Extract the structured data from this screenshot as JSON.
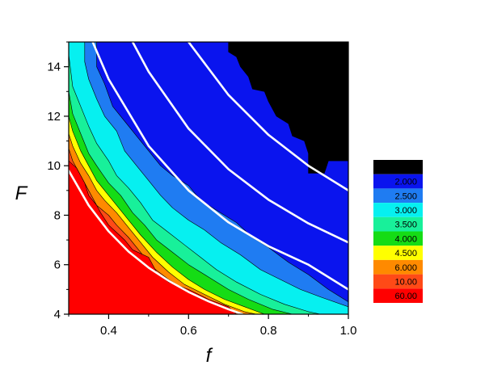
{
  "chart_data": {
    "type": "heatmap",
    "title": "",
    "xlabel": "f",
    "ylabel": "F",
    "xlim": [
      0.3,
      1.0
    ],
    "ylim": [
      4,
      15
    ],
    "x_ticks": [
      {
        "value": 0.4,
        "label": "0.4"
      },
      {
        "value": 0.6,
        "label": "0.6"
      },
      {
        "value": 0.8,
        "label": "0.8"
      },
      {
        "value": 1.0,
        "label": "1.0"
      }
    ],
    "x_minor_ticks": [
      0.3,
      0.5,
      0.7,
      0.9
    ],
    "y_ticks": [
      {
        "value": 4,
        "label": "4"
      },
      {
        "value": 6,
        "label": "6"
      },
      {
        "value": 8,
        "label": "8"
      },
      {
        "value": 10,
        "label": "10"
      },
      {
        "value": 12,
        "label": "12"
      },
      {
        "value": 14,
        "label": "14"
      }
    ],
    "y_minor_ticks": [
      5,
      7,
      9,
      11,
      13,
      15
    ],
    "legend_position": "right",
    "levels": [
      {
        "label": "1.000",
        "color": "#000000"
      },
      {
        "label": "2.000",
        "color": "#0a14ee"
      },
      {
        "label": "2.500",
        "color": "#1f7cf2"
      },
      {
        "label": "3.000",
        "color": "#06f0f0"
      },
      {
        "label": "3.500",
        "color": "#18f09a"
      },
      {
        "label": "4.000",
        "color": "#15dc15"
      },
      {
        "label": "4.500",
        "color": "#ffff00"
      },
      {
        "label": "6.000",
        "color": "#ff8a00"
      },
      {
        "label": "10.00",
        "color": "#ff4a17"
      },
      {
        "label": "60.00",
        "color": "#ff0000"
      }
    ],
    "regions": [
      {
        "level": "2.000",
        "boundary": [
          [
            0.3,
            15.0
          ],
          [
            0.3,
            4.0
          ],
          [
            1.0,
            4.0
          ],
          [
            1.0,
            15.0
          ]
        ]
      },
      {
        "level": "1.000",
        "boundary": [
          [
            0.7,
            15.0
          ],
          [
            0.7,
            14.6
          ],
          [
            0.72,
            14.4
          ],
          [
            0.73,
            14.0
          ],
          [
            0.75,
            13.6
          ],
          [
            0.76,
            13.1
          ],
          [
            0.79,
            13.0
          ],
          [
            0.8,
            12.6
          ],
          [
            0.82,
            12.0
          ],
          [
            0.85,
            11.7
          ],
          [
            0.86,
            11.2
          ],
          [
            0.89,
            11.0
          ],
          [
            0.9,
            10.5
          ],
          [
            0.9,
            9.7
          ],
          [
            0.94,
            9.7
          ],
          [
            0.95,
            10.2
          ],
          [
            1.0,
            10.2
          ],
          [
            1.0,
            15.0
          ]
        ]
      },
      {
        "level": "2.500",
        "boundary": [
          [
            0.3,
            15.0
          ],
          [
            0.37,
            15.0
          ],
          [
            0.37,
            14.0
          ],
          [
            0.39,
            13.3
          ],
          [
            0.41,
            12.4
          ],
          [
            0.44,
            11.8
          ],
          [
            0.47,
            11.2
          ],
          [
            0.5,
            10.6
          ],
          [
            0.53,
            10.0
          ],
          [
            0.56,
            9.6
          ],
          [
            0.6,
            9.2
          ],
          [
            0.62,
            8.8
          ],
          [
            0.64,
            8.5
          ],
          [
            0.68,
            8.1
          ],
          [
            0.72,
            7.7
          ],
          [
            0.76,
            7.1
          ],
          [
            0.8,
            6.7
          ],
          [
            0.85,
            6.1
          ],
          [
            0.9,
            5.6
          ],
          [
            0.95,
            5.0
          ],
          [
            1.0,
            4.5
          ],
          [
            1.0,
            4.0
          ],
          [
            0.3,
            4.0
          ]
        ]
      },
      {
        "level": "3.000",
        "boundary": [
          [
            0.3,
            15.0
          ],
          [
            0.34,
            15.0
          ],
          [
            0.34,
            14.2
          ],
          [
            0.35,
            13.5
          ],
          [
            0.37,
            12.7
          ],
          [
            0.39,
            12.0
          ],
          [
            0.42,
            11.4
          ],
          [
            0.44,
            10.6
          ],
          [
            0.47,
            10.0
          ],
          [
            0.5,
            9.4
          ],
          [
            0.53,
            8.8
          ],
          [
            0.56,
            8.3
          ],
          [
            0.6,
            7.8
          ],
          [
            0.64,
            7.4
          ],
          [
            0.68,
            6.9
          ],
          [
            0.73,
            6.4
          ],
          [
            0.78,
            5.8
          ],
          [
            0.83,
            5.4
          ],
          [
            0.88,
            5.0
          ],
          [
            0.93,
            4.7
          ],
          [
            1.0,
            4.3
          ],
          [
            1.0,
            4.0
          ],
          [
            0.3,
            4.0
          ]
        ]
      },
      {
        "level": "3.500",
        "boundary": [
          [
            0.3,
            14.5
          ],
          [
            0.31,
            13.2
          ],
          [
            0.33,
            12.4
          ],
          [
            0.35,
            11.6
          ],
          [
            0.37,
            10.9
          ],
          [
            0.4,
            10.2
          ],
          [
            0.42,
            9.6
          ],
          [
            0.45,
            9.1
          ],
          [
            0.48,
            8.5
          ],
          [
            0.51,
            7.8
          ],
          [
            0.55,
            7.3
          ],
          [
            0.59,
            6.8
          ],
          [
            0.63,
            6.3
          ],
          [
            0.67,
            5.8
          ],
          [
            0.72,
            5.3
          ],
          [
            0.78,
            4.8
          ],
          [
            0.84,
            4.4
          ],
          [
            0.9,
            4.1
          ],
          [
            0.93,
            4.0
          ],
          [
            0.3,
            4.0
          ]
        ]
      },
      {
        "level": "4.000",
        "boundary": [
          [
            0.3,
            13.0
          ],
          [
            0.31,
            12.1
          ],
          [
            0.33,
            11.3
          ],
          [
            0.35,
            10.5
          ],
          [
            0.37,
            10.0
          ],
          [
            0.4,
            9.3
          ],
          [
            0.43,
            8.8
          ],
          [
            0.46,
            8.1
          ],
          [
            0.49,
            7.6
          ],
          [
            0.52,
            7.0
          ],
          [
            0.56,
            6.5
          ],
          [
            0.6,
            6.0
          ],
          [
            0.65,
            5.5
          ],
          [
            0.7,
            5.0
          ],
          [
            0.75,
            4.6
          ],
          [
            0.81,
            4.2
          ],
          [
            0.86,
            4.0
          ],
          [
            0.3,
            4.0
          ]
        ]
      },
      {
        "level": "4.500",
        "boundary": [
          [
            0.3,
            12.0
          ],
          [
            0.31,
            11.4
          ],
          [
            0.33,
            10.6
          ],
          [
            0.35,
            10.0
          ],
          [
            0.37,
            9.4
          ],
          [
            0.4,
            8.8
          ],
          [
            0.42,
            8.4
          ],
          [
            0.45,
            7.8
          ],
          [
            0.48,
            7.2
          ],
          [
            0.52,
            6.5
          ],
          [
            0.56,
            5.9
          ],
          [
            0.6,
            5.4
          ],
          [
            0.64,
            5.0
          ],
          [
            0.69,
            4.6
          ],
          [
            0.74,
            4.3
          ],
          [
            0.79,
            4.0
          ],
          [
            0.3,
            4.0
          ]
        ]
      },
      {
        "level": "6.000",
        "boundary": [
          [
            0.3,
            11.3
          ],
          [
            0.31,
            10.8
          ],
          [
            0.33,
            10.1
          ],
          [
            0.35,
            9.6
          ],
          [
            0.37,
            9.0
          ],
          [
            0.39,
            8.6
          ],
          [
            0.42,
            8.1
          ],
          [
            0.45,
            7.5
          ],
          [
            0.48,
            6.9
          ],
          [
            0.51,
            6.3
          ],
          [
            0.55,
            5.7
          ],
          [
            0.59,
            5.2
          ],
          [
            0.64,
            4.8
          ],
          [
            0.69,
            4.4
          ],
          [
            0.74,
            4.1
          ],
          [
            0.77,
            4.0
          ],
          [
            0.3,
            4.0
          ]
        ]
      },
      {
        "level": "10.00",
        "boundary": [
          [
            0.3,
            10.7
          ],
          [
            0.31,
            10.2
          ],
          [
            0.33,
            9.6
          ],
          [
            0.35,
            9.0
          ],
          [
            0.37,
            8.4
          ],
          [
            0.4,
            8.0
          ],
          [
            0.42,
            7.6
          ],
          [
            0.45,
            7.1
          ],
          [
            0.48,
            6.5
          ],
          [
            0.51,
            5.9
          ],
          [
            0.55,
            5.4
          ],
          [
            0.6,
            4.9
          ],
          [
            0.65,
            4.5
          ],
          [
            0.7,
            4.2
          ],
          [
            0.74,
            4.0
          ],
          [
            0.3,
            4.0
          ]
        ]
      },
      {
        "level": "60.00",
        "boundary": [
          [
            0.3,
            10.2
          ],
          [
            0.32,
            9.9
          ],
          [
            0.34,
            9.3
          ],
          [
            0.35,
            8.8
          ],
          [
            0.37,
            8.4
          ],
          [
            0.38,
            8.1
          ],
          [
            0.4,
            7.6
          ],
          [
            0.42,
            7.3
          ],
          [
            0.44,
            7.0
          ],
          [
            0.46,
            6.6
          ],
          [
            0.5,
            6.3
          ],
          [
            0.52,
            5.7
          ],
          [
            0.55,
            5.3
          ],
          [
            0.6,
            5.0
          ],
          [
            0.65,
            4.6
          ],
          [
            0.7,
            4.3
          ],
          [
            0.72,
            4.0
          ],
          [
            0.3,
            4.0
          ]
        ]
      }
    ],
    "curves": [
      {
        "points": [
          [
            0.3,
            9.8
          ],
          [
            0.35,
            8.4
          ],
          [
            0.4,
            7.35
          ],
          [
            0.45,
            6.53
          ],
          [
            0.5,
            5.88
          ],
          [
            0.55,
            5.35
          ],
          [
            0.6,
            4.9
          ],
          [
            0.65,
            4.52
          ],
          [
            0.7,
            4.2
          ],
          [
            0.735,
            4.0
          ]
        ]
      },
      {
        "points": [
          [
            0.36,
            15.0
          ],
          [
            0.4,
            13.5
          ],
          [
            0.5,
            10.8
          ],
          [
            0.6,
            9.0
          ],
          [
            0.7,
            7.71
          ],
          [
            0.8,
            6.75
          ],
          [
            0.9,
            6.0
          ],
          [
            1.0,
            5.0
          ]
        ]
      },
      {
        "points": [
          [
            0.46,
            15.0
          ],
          [
            0.5,
            13.8
          ],
          [
            0.6,
            11.5
          ],
          [
            0.7,
            9.86
          ],
          [
            0.8,
            8.63
          ],
          [
            0.9,
            7.67
          ],
          [
            1.0,
            6.9
          ]
        ]
      },
      {
        "points": [
          [
            0.6,
            15.0
          ],
          [
            0.7,
            12.86
          ],
          [
            0.8,
            11.25
          ],
          [
            0.9,
            10.0
          ],
          [
            1.0,
            9.0
          ]
        ]
      }
    ]
  }
}
